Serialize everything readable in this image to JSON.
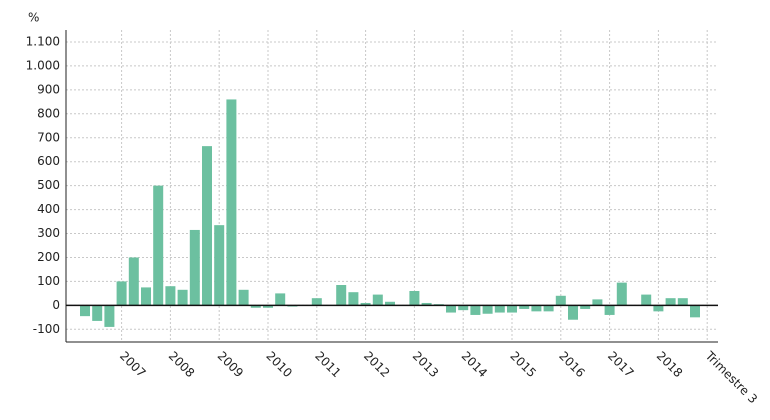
{
  "chart_data": {
    "type": "bar",
    "y_label": "%",
    "categories": [
      null,
      null,
      null,
      "2007",
      null,
      null,
      null,
      "2008",
      null,
      null,
      null,
      "2009",
      null,
      null,
      null,
      "2010",
      null,
      null,
      null,
      "2011",
      null,
      null,
      null,
      "2012",
      null,
      null,
      null,
      "2013",
      null,
      null,
      null,
      "2014",
      null,
      null,
      null,
      "2015",
      null,
      null,
      null,
      "2016",
      null,
      null,
      null,
      "2017",
      null,
      null,
      null,
      "2018",
      null,
      null,
      null,
      "Trimestre 3"
    ],
    "values": [
      -45,
      -65,
      -90,
      100,
      200,
      75,
      500,
      80,
      65,
      315,
      665,
      335,
      860,
      65,
      -10,
      -10,
      50,
      -5,
      0,
      30,
      0,
      85,
      55,
      10,
      45,
      15,
      0,
      60,
      10,
      5,
      -30,
      -20,
      -40,
      -35,
      -30,
      -30,
      -15,
      -25,
      -25,
      40,
      -60,
      -15,
      25,
      -40,
      95,
      0,
      45,
      -25,
      30,
      30,
      -50,
      null
    ],
    "color": "#6cc0a0",
    "ylim": [
      -153,
      1150
    ],
    "yticks": [
      -100,
      0,
      100,
      200,
      300,
      400,
      500,
      600,
      700,
      800,
      900,
      {
        "value": 1000,
        "label": "1.000"
      },
      {
        "value": 1100,
        "label": "1.100"
      }
    ],
    "grid": true
  }
}
